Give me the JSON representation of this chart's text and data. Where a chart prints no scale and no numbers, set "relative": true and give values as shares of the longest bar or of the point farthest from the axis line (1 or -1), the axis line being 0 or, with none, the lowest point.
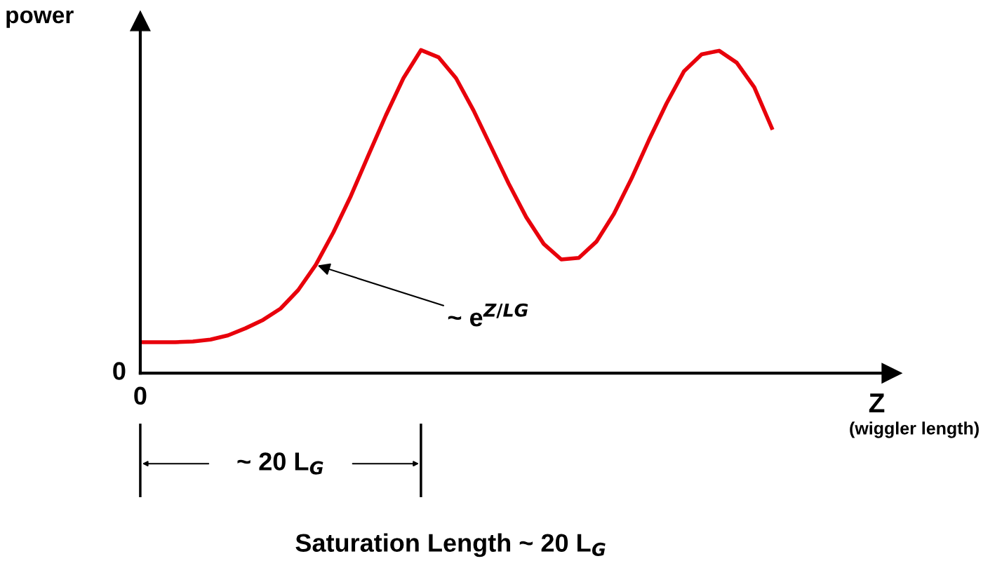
{
  "chart_data": {
    "type": "line",
    "relative": true,
    "ylabel": "power",
    "xlabel": "Z",
    "categories": [
      null,
      null,
      null,
      null,
      null,
      null,
      null,
      null,
      null,
      null,
      null,
      null,
      null,
      null,
      null,
      null,
      null,
      null,
      null,
      null,
      null,
      null,
      null,
      null,
      null,
      null,
      null,
      null,
      null,
      null,
      null,
      null,
      null,
      null,
      null,
      null,
      null
    ],
    "series": [
      {
        "color": "#e8000b",
        "values": [
          0.096,
          0.096,
          0.096,
          0.098,
          0.104,
          0.117,
          0.139,
          0.165,
          0.2,
          0.257,
          0.335,
          0.435,
          0.548,
          0.674,
          0.798,
          0.913,
          1.0,
          0.978,
          0.913,
          0.813,
          0.7,
          0.587,
          0.483,
          0.4,
          0.352,
          0.357,
          0.407,
          0.493,
          0.602,
          0.722,
          0.835,
          0.935,
          0.987,
          0.998,
          0.961,
          0.885,
          0.759
        ]
      }
    ],
    "annotations": [
      "0",
      "0",
      "(wiggler length)",
      "~ e$^{Z/LG}$",
      "~ 20 L$_{G}$",
      "Saturation Length ~ 20 L$_{G}$"
    ],
    "legend": false,
    "marker": "none",
    "line_style": "solid"
  }
}
